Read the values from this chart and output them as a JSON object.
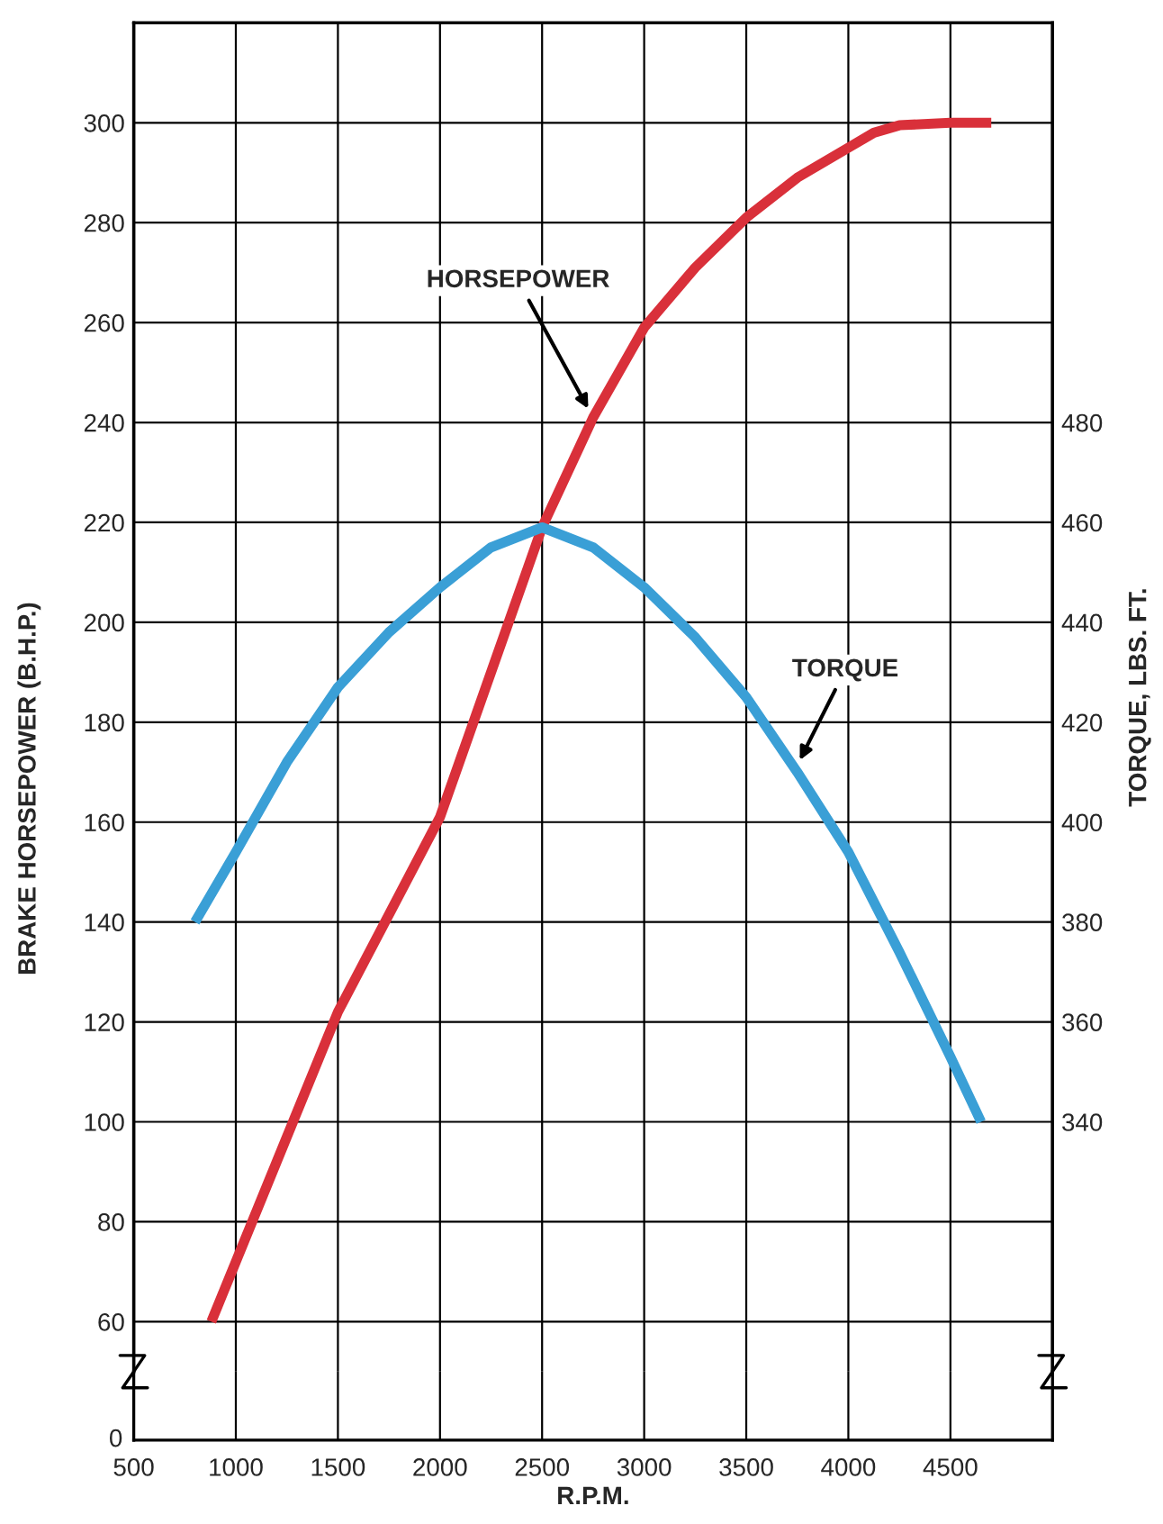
{
  "chart_data": {
    "type": "line",
    "xlabel": "R.P.M.",
    "ylabel": "BRAKE HORSEPOWER (B.H.P.)",
    "y2label": "TORQUE, LBS. FT.",
    "xlim": [
      500,
      5000
    ],
    "xticks": [
      500,
      1000,
      1500,
      2000,
      2500,
      3000,
      3500,
      4000,
      4500
    ],
    "ylim": [
      50,
      320
    ],
    "yticks": [
      60,
      80,
      100,
      120,
      140,
      160,
      180,
      200,
      220,
      240,
      260,
      280,
      300
    ],
    "y2lim": [
      290,
      560
    ],
    "annotations": [
      "0"
    ],
    "y2ticks": [
      340,
      360,
      380,
      400,
      420,
      440,
      460,
      480
    ],
    "grid": true,
    "line_style": "solid",
    "marker": "none",
    "series": [
      {
        "name": "HORSEPOWER",
        "color": "#d9303a",
        "x": [
          880,
          1000,
          1500,
          2000,
          2250,
          2500,
          2750,
          3000,
          3250,
          3500,
          3750,
          4000,
          4125,
          4250,
          4500,
          4700
        ],
        "values": [
          60,
          72,
          122,
          161,
          190,
          219,
          241,
          259,
          271,
          281,
          289,
          295,
          298,
          299.5,
          300,
          300
        ]
      },
      {
        "name": "TORQUE",
        "color": "#3a9fd6",
        "axis": "y2",
        "x": [
          800,
          1000,
          1250,
          1500,
          1750,
          2000,
          2250,
          2500,
          2750,
          3000,
          3250,
          3500,
          3750,
          4000,
          4250,
          4500,
          4650
        ],
        "values": [
          380,
          394,
          412,
          427,
          438,
          447,
          455,
          459,
          455,
          447,
          437,
          425,
          410,
          394,
          374,
          353,
          340
        ]
      }
    ]
  }
}
